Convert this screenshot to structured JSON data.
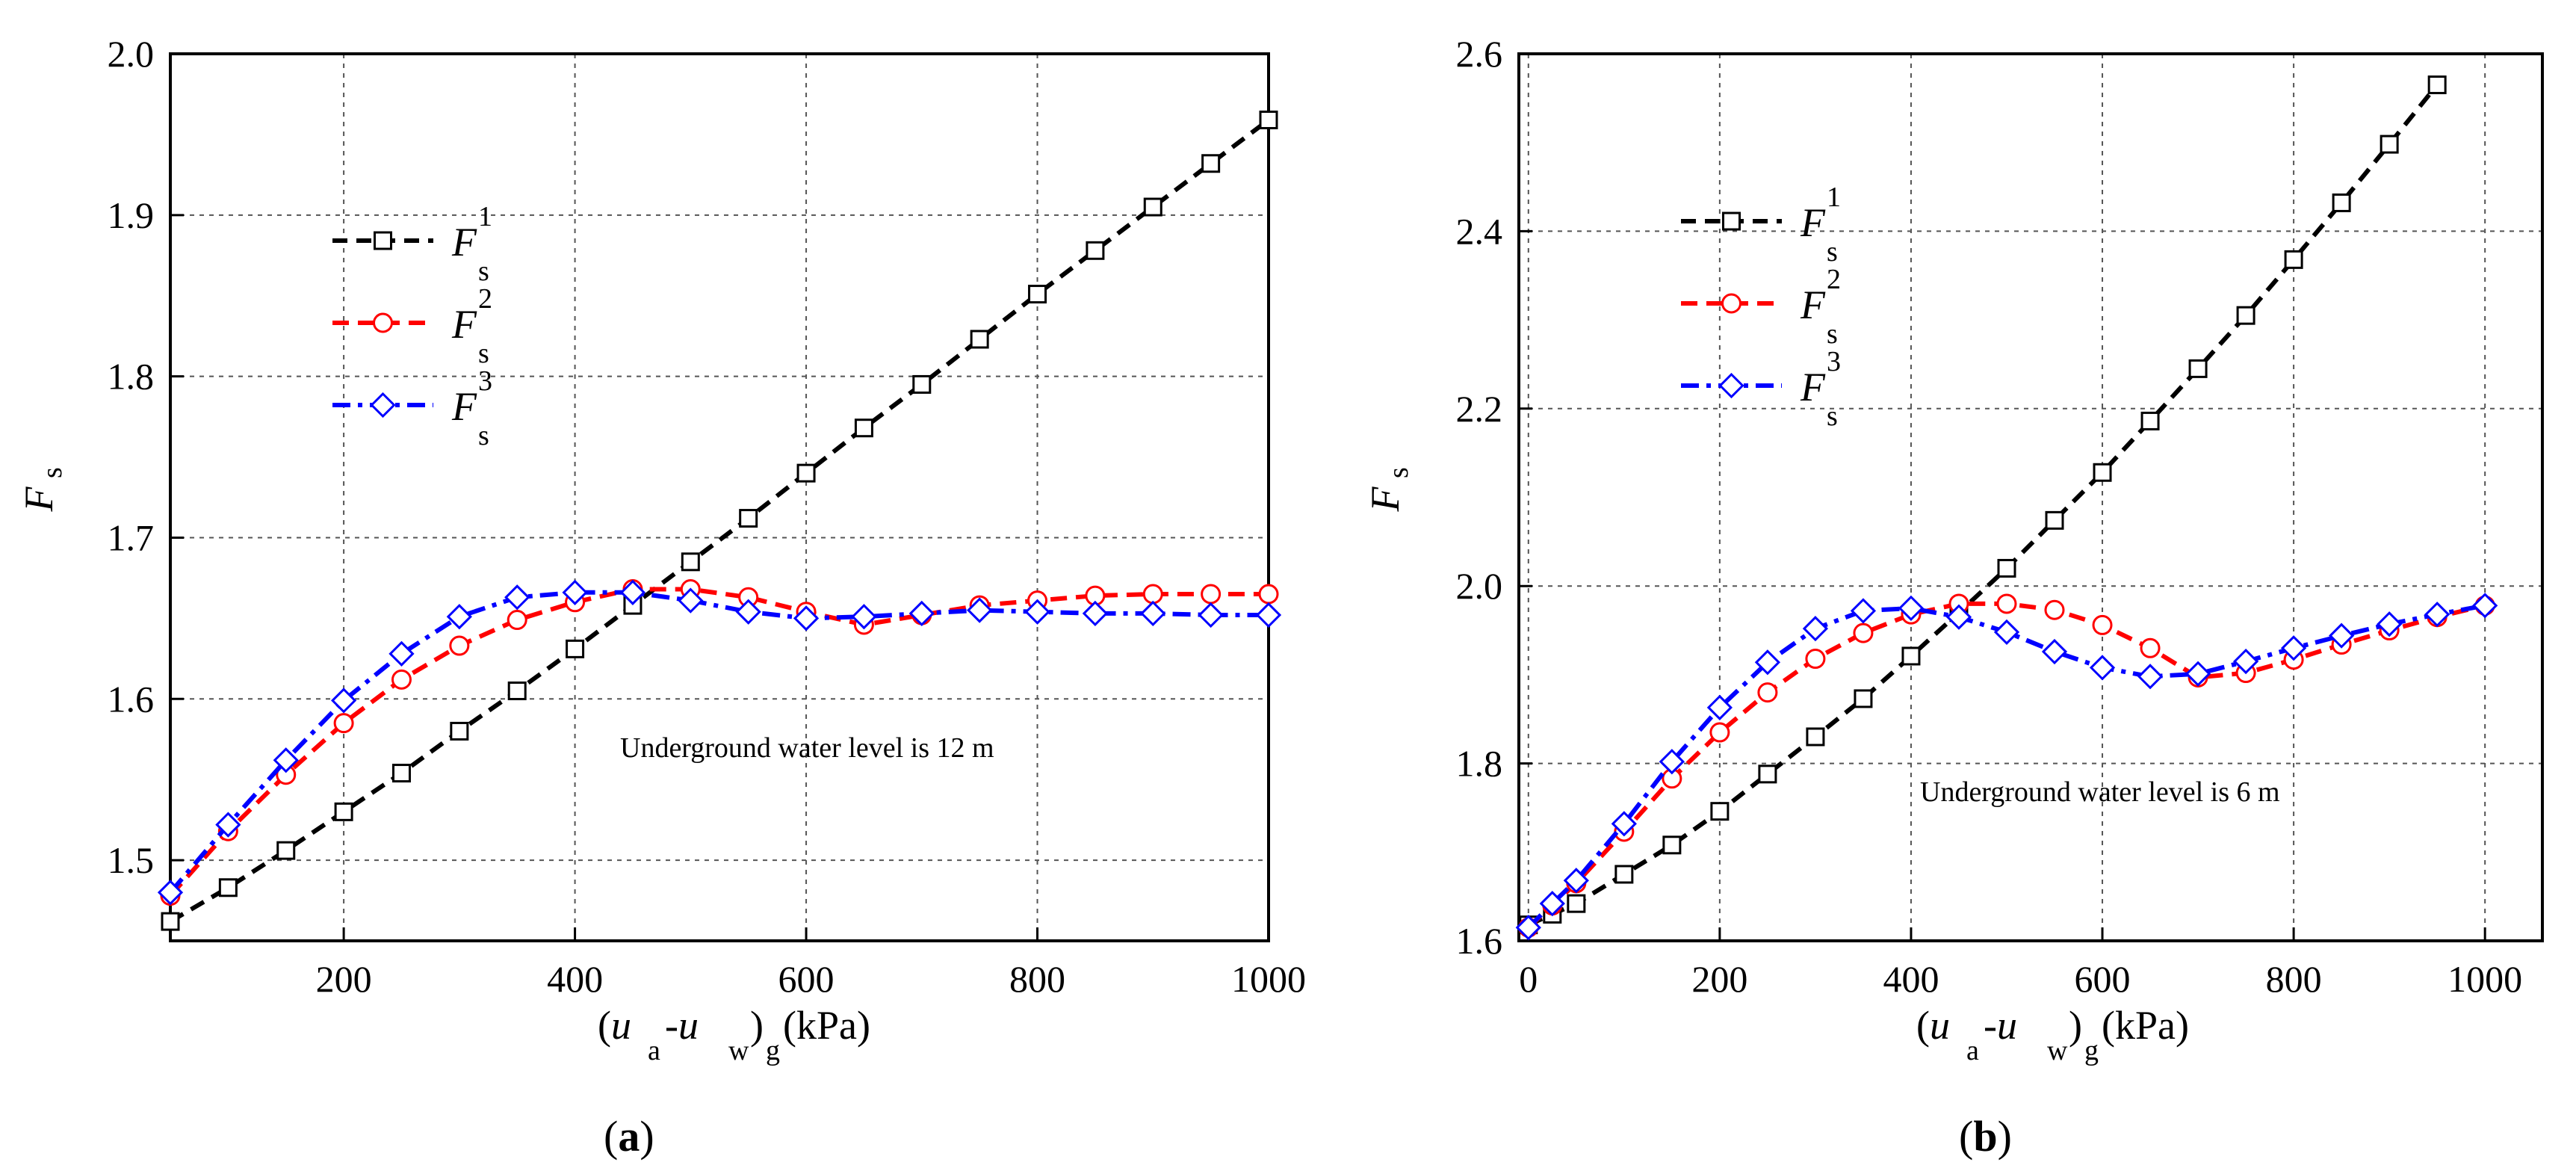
{
  "chart_data": [
    {
      "type": "line",
      "panel_label": "(a)",
      "panel_letter": "a",
      "xlabel": "(u_a-u_w)_g(kPa)",
      "ylabel": "F_s",
      "xlim": [
        50,
        1000
      ],
      "ylim": [
        1.45,
        2.0
      ],
      "xticks": [
        200,
        400,
        600,
        800,
        1000
      ],
      "xtick_labels": [
        "200",
        "400",
        "600",
        "800",
        "1000"
      ],
      "yticks": [
        1.5,
        1.6,
        1.7,
        1.8,
        1.9,
        2.0
      ],
      "ytick_labels": [
        "1.5",
        "1.6",
        "1.7",
        "1.8",
        "1.9",
        "2.0"
      ],
      "grid": true,
      "legend_position": "upper-left",
      "annotation": "Underground water level is 12 m",
      "series": [
        {
          "name": "F 1 s",
          "sym": "F",
          "sup": "1",
          "sub": "s",
          "color": "#000000",
          "marker": "square",
          "x": [
            50,
            100,
            150,
            200,
            250,
            300,
            350,
            400,
            450,
            500,
            550,
            600,
            650,
            700,
            750,
            800,
            850,
            900,
            950,
            1000
          ],
          "y": [
            1.462,
            1.483,
            1.506,
            1.53,
            1.554,
            1.58,
            1.605,
            1.631,
            1.658,
            1.685,
            1.712,
            1.74,
            1.768,
            1.795,
            1.823,
            1.851,
            1.878,
            1.905,
            1.932,
            1.959
          ]
        },
        {
          "name": "F 2 s",
          "sym": "F",
          "sup": "2",
          "sub": "s",
          "color": "#ff0000",
          "marker": "circle",
          "x": [
            50,
            100,
            150,
            200,
            250,
            300,
            350,
            400,
            450,
            500,
            550,
            600,
            650,
            700,
            750,
            800,
            850,
            900,
            950,
            1000
          ],
          "y": [
            1.478,
            1.518,
            1.553,
            1.585,
            1.612,
            1.633,
            1.649,
            1.66,
            1.668,
            1.668,
            1.663,
            1.654,
            1.646,
            1.652,
            1.658,
            1.661,
            1.664,
            1.665,
            1.665,
            1.665
          ]
        },
        {
          "name": "F 3 s",
          "sym": "F",
          "sup": "3",
          "sub": "s",
          "color": "#0000ff",
          "marker": "diamond",
          "x": [
            50,
            100,
            150,
            200,
            250,
            300,
            350,
            400,
            450,
            500,
            550,
            600,
            650,
            700,
            750,
            800,
            850,
            900,
            950,
            1000
          ],
          "y": [
            1.48,
            1.522,
            1.562,
            1.599,
            1.628,
            1.651,
            1.663,
            1.666,
            1.666,
            1.661,
            1.654,
            1.65,
            1.651,
            1.653,
            1.655,
            1.654,
            1.653,
            1.653,
            1.652,
            1.652
          ]
        }
      ]
    },
    {
      "type": "line",
      "panel_label": "(b)",
      "panel_letter": "b",
      "xlabel": "(u_a-u_w)_g(kPa)",
      "ylabel": "F_s",
      "xlim": [
        -10,
        1060
      ],
      "ylim": [
        1.6,
        2.6
      ],
      "xticks": [
        0,
        200,
        400,
        600,
        800,
        1000
      ],
      "xtick_labels": [
        "0",
        "200",
        "400",
        "600",
        "800",
        "1000"
      ],
      "yticks": [
        1.6,
        1.8,
        2.0,
        2.2,
        2.4,
        2.6
      ],
      "ytick_labels": [
        "1.6",
        "1.8",
        "2.0",
        "2.2",
        "2.4",
        "2.6"
      ],
      "grid": true,
      "legend_position": "upper-left",
      "annotation": "Underground water level is 6 m",
      "series": [
        {
          "name": "F 1 s",
          "sym": "F",
          "sup": "1",
          "sub": "s",
          "color": "#000000",
          "marker": "square",
          "x": [
            0,
            25,
            50,
            100,
            150,
            200,
            250,
            300,
            350,
            400,
            450,
            500,
            550,
            600,
            650,
            700,
            750,
            800,
            850,
            900,
            950
          ],
          "y": [
            1.618,
            1.63,
            1.642,
            1.675,
            1.708,
            1.746,
            1.788,
            1.83,
            1.873,
            1.921,
            1.97,
            2.02,
            2.074,
            2.128,
            2.186,
            2.245,
            2.305,
            2.368,
            2.432,
            2.498,
            2.565
          ]
        },
        {
          "name": "F 2 s",
          "sym": "F",
          "sup": "2",
          "sub": "s",
          "color": "#ff0000",
          "marker": "circle",
          "x": [
            0,
            25,
            50,
            100,
            150,
            200,
            250,
            300,
            350,
            400,
            450,
            500,
            550,
            600,
            650,
            700,
            750,
            800,
            850,
            900,
            950,
            1000
          ],
          "y": [
            1.615,
            1.64,
            1.665,
            1.723,
            1.783,
            1.835,
            1.88,
            1.918,
            1.947,
            1.968,
            1.98,
            1.98,
            1.973,
            1.956,
            1.93,
            1.897,
            1.902,
            1.917,
            1.934,
            1.95,
            1.965,
            1.978
          ]
        },
        {
          "name": "F 3 s",
          "sym": "F",
          "sup": "3",
          "sub": "s",
          "color": "#0000ff",
          "marker": "diamond",
          "x": [
            0,
            25,
            50,
            100,
            150,
            200,
            250,
            300,
            350,
            400,
            450,
            500,
            550,
            600,
            650,
            700,
            750,
            800,
            850,
            900,
            950,
            1000
          ],
          "y": [
            1.615,
            1.642,
            1.668,
            1.732,
            1.802,
            1.863,
            1.914,
            1.952,
            1.972,
            1.975,
            1.965,
            1.948,
            1.926,
            1.908,
            1.898,
            1.901,
            1.915,
            1.93,
            1.944,
            1.957,
            1.968,
            1.978
          ]
        }
      ]
    }
  ]
}
